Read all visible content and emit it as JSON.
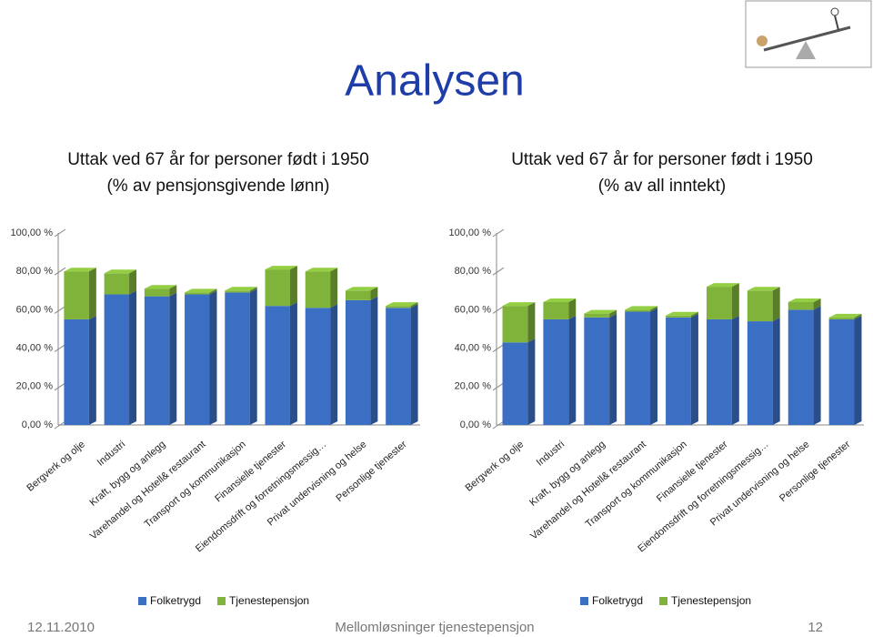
{
  "slide": {
    "title": "Analysen",
    "date": "12.11.2010",
    "footer": "Mellomløsninger tjenestepensjon",
    "page": "12"
  },
  "chart_data": [
    {
      "type": "bar",
      "stacked": true,
      "title": "Uttak ved 67 år for personer født i 1950",
      "subtitle": "(% av pensjonsgivende lønn)",
      "categories": [
        "Bergverk og olje",
        "Industri",
        "Kraft, bygg og anlegg",
        "Varehandel  og Hotell& restaurant",
        "Transport og kommunikasjon",
        "Finansielle tjenester",
        "Eiendomsdrift og forretningsmessig…",
        "Privat undervisning og helse",
        "Personlige tjenester"
      ],
      "series": [
        {
          "name": "Folketrygd",
          "color": "#3a6fc4",
          "values": [
            55,
            68,
            67,
            68,
            69,
            62,
            61,
            65,
            61
          ]
        },
        {
          "name": "Tjenestepensjon",
          "color": "#80b33a",
          "values": [
            25,
            11,
            4,
            1,
            1,
            19,
            19,
            5,
            1
          ]
        }
      ],
      "ylim": [
        0,
        100
      ],
      "yticks": [
        {
          "value": 0,
          "label": "0,00 %"
        },
        {
          "value": 20,
          "label": "20,00 %"
        },
        {
          "value": 40,
          "label": "40,00 %"
        },
        {
          "value": 60,
          "label": "60,00 %"
        },
        {
          "value": 80,
          "label": "80,00 %"
        },
        {
          "value": 100,
          "label": "100,00 %"
        }
      ],
      "legend": "bottom"
    },
    {
      "type": "bar",
      "stacked": true,
      "title": "Uttak ved 67 år for personer født i 1950",
      "subtitle": "(% av all inntekt)",
      "categories": [
        "Bergverk og olje",
        "Industri",
        "Kraft, bygg og anlegg",
        "Varehandel  og Hotell& restaurant",
        "Transport og kommunikasjon",
        "Finansielle tjenester",
        "Eiendomsdrift og forretningsmessig…",
        "Privat undervisning og helse",
        "Personlige tjenester"
      ],
      "series": [
        {
          "name": "Folketrygd",
          "color": "#3a6fc4",
          "values": [
            43,
            55,
            56,
            59,
            56,
            55,
            54,
            60,
            55
          ]
        },
        {
          "name": "Tjenestepensjon",
          "color": "#80b33a",
          "values": [
            19,
            9,
            2,
            1,
            1,
            17,
            16,
            4,
            1
          ]
        }
      ],
      "ylim": [
        0,
        100
      ],
      "yticks": [
        {
          "value": 0,
          "label": "0,00 %"
        },
        {
          "value": 20,
          "label": "20,00 %"
        },
        {
          "value": 40,
          "label": "40,00 %"
        },
        {
          "value": 60,
          "label": "60,00 %"
        },
        {
          "value": 80,
          "label": "80,00 %"
        },
        {
          "value": 100,
          "label": "100,00 %"
        }
      ],
      "legend": "bottom"
    }
  ]
}
